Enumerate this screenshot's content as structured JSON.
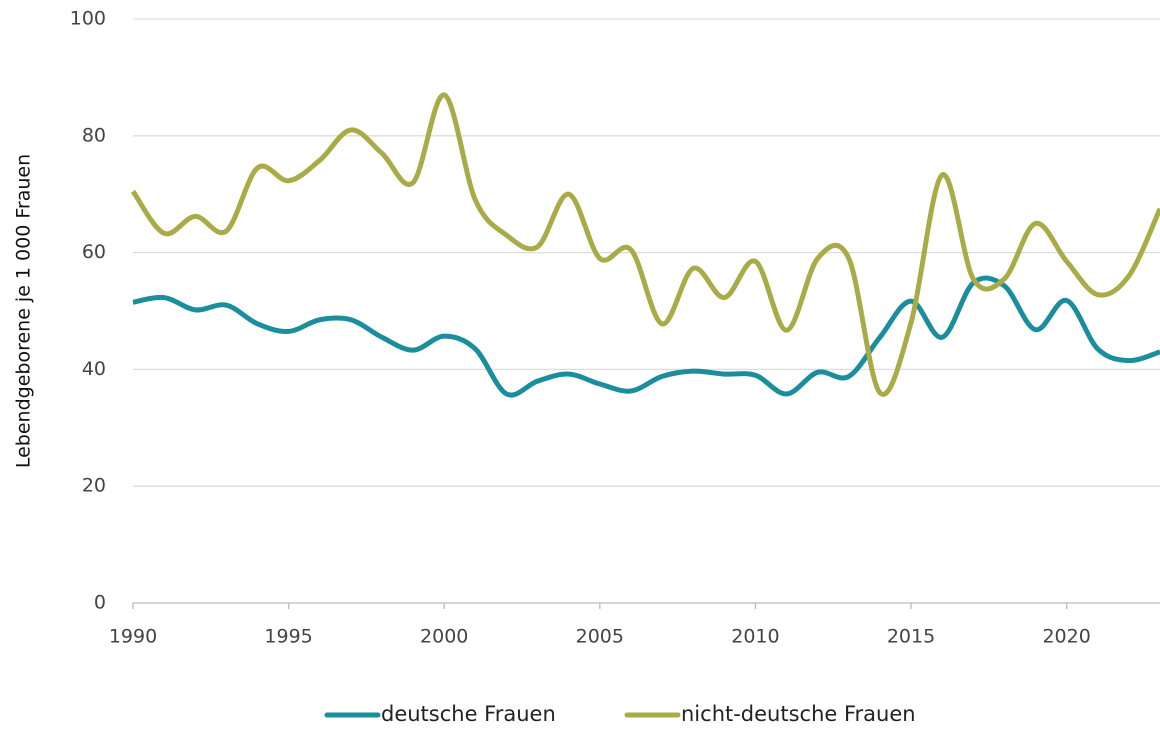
{
  "chart_data": {
    "type": "line",
    "y_label": "Lebendgeborene je 1 000 Frauen",
    "x": [
      1990,
      1991,
      1992,
      1993,
      1994,
      1995,
      1996,
      1997,
      1998,
      1999,
      2000,
      2001,
      2002,
      2003,
      2004,
      2005,
      2006,
      2007,
      2008,
      2009,
      2010,
      2011,
      2012,
      2013,
      2014,
      2015,
      2016,
      2017,
      2018,
      2019,
      2020,
      2021,
      2022,
      2023
    ],
    "series": [
      {
        "name": "deutsche Frauen",
        "color": "#1b8e9e",
        "values": [
          51.5,
          52.3,
          50.2,
          51,
          47.8,
          46.5,
          48.5,
          48.5,
          45.5,
          43.3,
          45.7,
          43.5,
          35.8,
          38,
          39.2,
          37.5,
          36.3,
          38.8,
          39.7,
          39.2,
          39,
          35.8,
          39.5,
          38.8,
          45.5,
          51.7,
          45.5,
          54.8,
          54.3,
          46.8,
          51.8,
          43.5,
          41.5,
          43
        ]
      },
      {
        "name": "nicht-deutsche Frauen",
        "color": "#a9ab47",
        "values": [
          70.5,
          63.3,
          66.2,
          63.7,
          74.5,
          72.3,
          75.8,
          81,
          77,
          72,
          87,
          69,
          63,
          61,
          70,
          59,
          60.5,
          47.8,
          57.3,
          52.3,
          58.5,
          46.7,
          59,
          59,
          36,
          48,
          73.3,
          55.5,
          55.5,
          65,
          58.5,
          52.8,
          56,
          67.5
        ]
      }
    ],
    "xlim": [
      1990,
      2023
    ],
    "xticks": [
      1990,
      1995,
      2000,
      2005,
      2010,
      2015,
      2020
    ],
    "ylim": [
      0,
      100
    ],
    "yticks": [
      0,
      20,
      40,
      60,
      80,
      100
    ],
    "grid": true,
    "legend": "bottom"
  }
}
